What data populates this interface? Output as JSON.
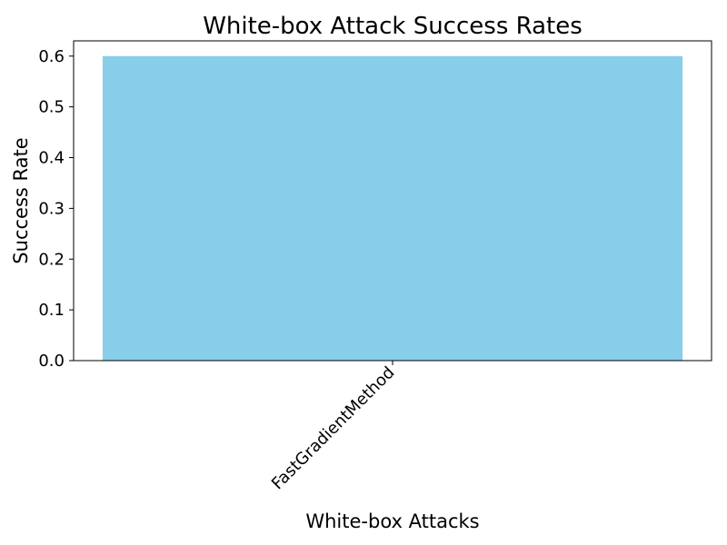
{
  "chart_data": {
    "type": "bar",
    "title": "White-box Attack Success Rates",
    "xlabel": "White-box Attacks",
    "ylabel": "Success Rate",
    "categories": [
      "FastGradientMethod"
    ],
    "values": [
      0.6
    ],
    "ylim": [
      0,
      0.63
    ],
    "yticks": [
      0.0,
      0.1,
      0.2,
      0.3,
      0.4,
      0.5,
      0.6
    ],
    "grid": false,
    "bar_color": "#87CEEB"
  }
}
